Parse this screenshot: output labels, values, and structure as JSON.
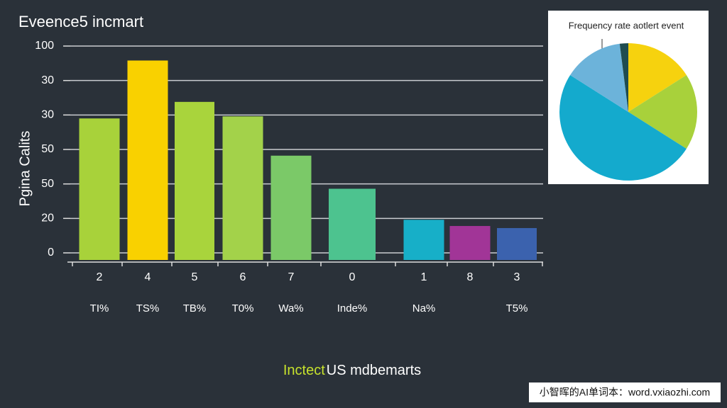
{
  "chart_data": [
    {
      "type": "bar",
      "title": "Eveence5 incmart",
      "y_label": "Pgina Calits",
      "x_label": [
        "Inctect",
        "US mdbemarts"
      ],
      "categories": [
        "2",
        "4",
        "5",
        "6",
        "7",
        "0",
        "1",
        "8",
        "3"
      ],
      "sublabels": [
        "TI%",
        "TS%",
        "TB%",
        "T0%",
        "Wa%",
        "Inde%",
        "Na%",
        null,
        "T5%"
      ],
      "values": [
        65,
        93,
        73,
        66,
        47,
        31,
        16,
        13,
        12
      ],
      "colors": [
        "#a8d23a",
        "#f9d100",
        "#a9d43c",
        "#a3d24a",
        "#7bc968",
        "#4dc38f",
        "#17afc8",
        "#a13597",
        "#3b62ae"
      ],
      "ylim": [
        0,
        100
      ],
      "yticks": [
        0,
        {
          "value": 16.67,
          "label": "20"
        },
        {
          "value": 33.33,
          "label": "50"
        },
        50,
        {
          "value": 66.67,
          "label": "30"
        },
        {
          "value": 83.33,
          "label": "30"
        },
        100
      ],
      "grid": true
    },
    {
      "type": "pie",
      "title": "Frequency rate aotlert event",
      "values": [
        16,
        18,
        50,
        14,
        2
      ],
      "colors": [
        "#f6d20e",
        "#a8d13b",
        "#14aacd",
        "#6cb3da",
        "#1f4c50"
      ]
    }
  ],
  "watermark": "小智晖的AI单词本：word.vxiaozhi.com"
}
